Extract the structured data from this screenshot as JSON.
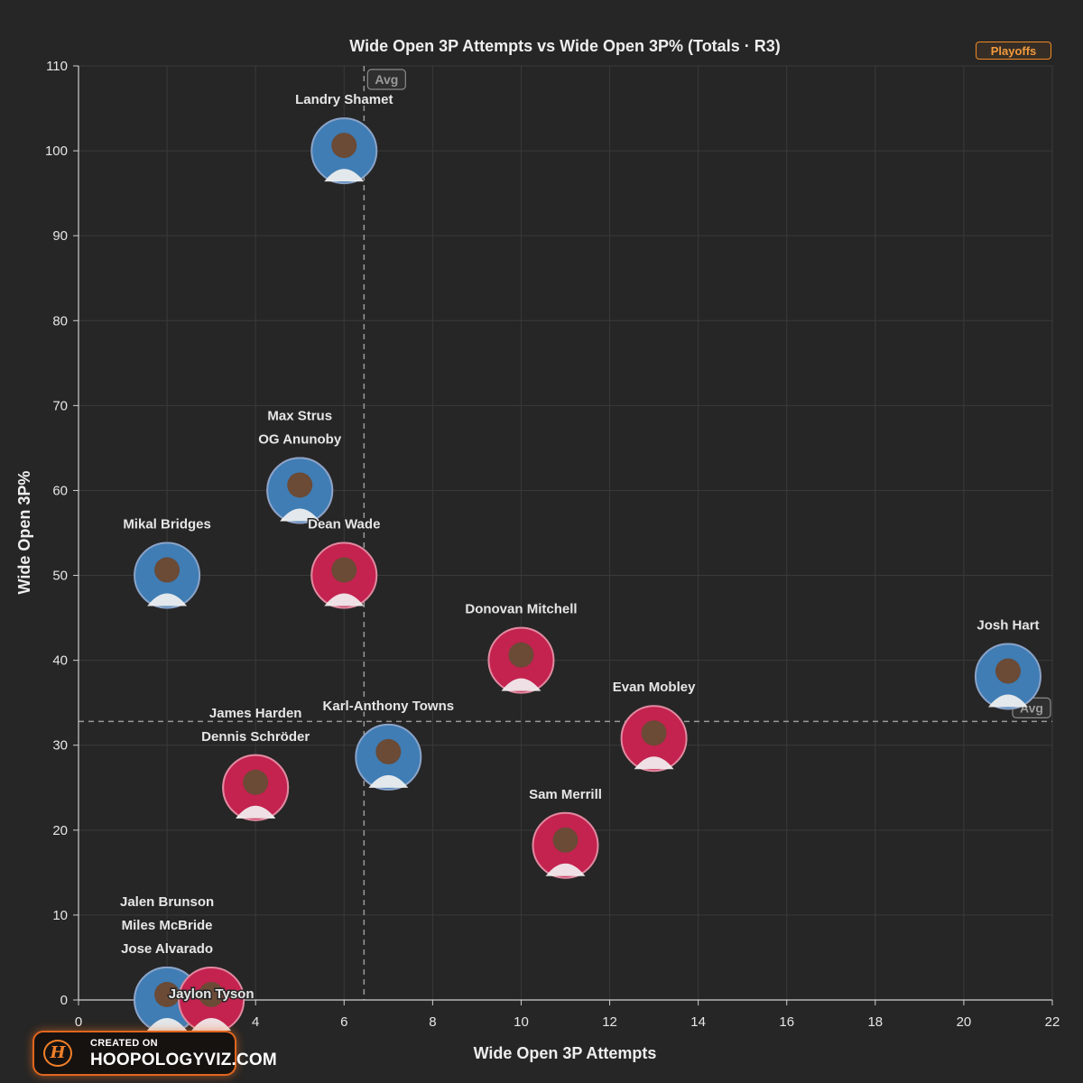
{
  "badge": "Playoffs",
  "logo": {
    "top": "CREATED ON",
    "bottom": "HOOPOLOGYVIZ.COM",
    "mark": "H"
  },
  "colors": {
    "background": "#262626",
    "grid": "#3a3a3a",
    "text": "#e6e6e6",
    "knicks_ring": "#8aa3c8",
    "knicks_fill": "#3f7db4",
    "cavs_ring": "#e08aa0",
    "cavs_fill": "#c4224f",
    "accent": "#f08a24"
  },
  "chart_data": {
    "type": "scatter",
    "title": "Wide Open 3P Attempts vs Wide Open 3P% (Totals · R3)",
    "xlabel": "Wide Open 3P Attempts",
    "ylabel": "Wide Open 3P%",
    "xlim": [
      0,
      22
    ],
    "ylim": [
      0,
      110
    ],
    "xticks": [
      0,
      2,
      4,
      6,
      8,
      10,
      12,
      14,
      16,
      18,
      20,
      22
    ],
    "yticks": [
      0,
      10,
      20,
      30,
      40,
      50,
      60,
      70,
      80,
      90,
      100,
      110
    ],
    "grid": true,
    "avg_x": 6.45,
    "avg_y": 32.8,
    "avg_label": "Avg",
    "points": [
      {
        "name": "Landry Shamet",
        "x": 6,
        "y": 100,
        "team": "NYK"
      },
      {
        "name": "Max Strus",
        "x": 5,
        "y": 60,
        "team": "CLE"
      },
      {
        "name": "OG Anunoby",
        "x": 5,
        "y": 60,
        "team": "NYK"
      },
      {
        "name": "Mikal Bridges",
        "x": 2,
        "y": 50,
        "team": "NYK"
      },
      {
        "name": "Dean Wade",
        "x": 6,
        "y": 50,
        "team": "CLE"
      },
      {
        "name": "Donovan Mitchell",
        "x": 10,
        "y": 40,
        "team": "CLE"
      },
      {
        "name": "Josh Hart",
        "x": 21,
        "y": 38.1,
        "team": "NYK"
      },
      {
        "name": "Evan Mobley",
        "x": 13,
        "y": 30.8,
        "team": "CLE"
      },
      {
        "name": "Karl-Anthony Towns",
        "x": 7,
        "y": 28.6,
        "team": "NYK"
      },
      {
        "name": "James Harden",
        "x": 4,
        "y": 25,
        "team": "CLE"
      },
      {
        "name": "Dennis Schröder",
        "x": 4,
        "y": 25,
        "team": "CLE"
      },
      {
        "name": "Sam Merrill",
        "x": 11,
        "y": 18.2,
        "team": "CLE"
      },
      {
        "name": "Jalen Brunson",
        "x": 2,
        "y": 0,
        "team": "NYK"
      },
      {
        "name": "Miles McBride",
        "x": 2,
        "y": 0,
        "team": "NYK"
      },
      {
        "name": "Jose Alvarado",
        "x": 2,
        "y": 0,
        "team": "NYK"
      },
      {
        "name": "Jaylon Tyson",
        "x": 3,
        "y": 0,
        "team": "CLE"
      }
    ]
  }
}
